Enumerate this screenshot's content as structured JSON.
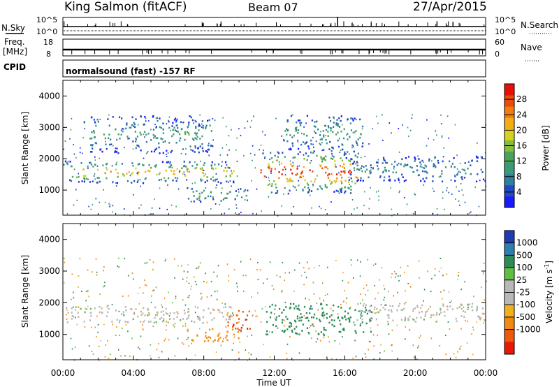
{
  "header": {
    "station": "King Salmon (fitACF)",
    "beam": "Beam 07",
    "date": "27/Apr/2015"
  },
  "param_panels": {
    "nsky_label": "N.Sky",
    "nsearch_label": "N.Search",
    "freq_label_1": "Freq.",
    "freq_label_2": "[MHz]",
    "nave_label": "Nave",
    "cpid_label": "CPID",
    "cpid_value": "normalsound (fast) -157 RF",
    "noise_ticks_left": [
      "10^5",
      "10^0"
    ],
    "noise_ticks_right": [
      "10^5",
      "10^0"
    ],
    "freq_ticks": [
      "18",
      "8"
    ],
    "nave_ticks": [
      "60",
      "0"
    ]
  },
  "chart_data": [
    {
      "type": "heatmap",
      "name": "power",
      "ylabel": "Slant Range [km]",
      "ylim": [
        200,
        4500
      ],
      "yticks": [
        "1000",
        "2000",
        "3000",
        "4000"
      ],
      "colorbar": {
        "label": "Power [dB]",
        "range": [
          0,
          32
        ],
        "ticks": [
          "4",
          "8",
          "12",
          "16",
          "20",
          "24",
          "28"
        ],
        "colors": [
          "#1a1aff",
          "#2447c4",
          "#2f7f9e",
          "#3a9a7a",
          "#4aa35a",
          "#86bd3c",
          "#d6d11e",
          "#f2ad12",
          "#f27d0c",
          "#ee4a09",
          "#e61006"
        ]
      },
      "bands": [
        {
          "t0": 0,
          "t1": 9.7,
          "r0": 1250,
          "r1": 1950,
          "peak_db": 22
        },
        {
          "t0": 1.5,
          "t1": 8.5,
          "r0": 2200,
          "r1": 3400,
          "peak_db": 10
        },
        {
          "t0": 7,
          "t1": 10.5,
          "r0": 650,
          "r1": 1100,
          "peak_db": 14
        },
        {
          "t0": 11.2,
          "t1": 16.8,
          "r0": 900,
          "r1": 2300,
          "peak_db": 29
        },
        {
          "t0": 12.5,
          "t1": 17,
          "r0": 2300,
          "r1": 3400,
          "peak_db": 10
        },
        {
          "t0": 16,
          "t1": 24,
          "r0": 1300,
          "r1": 2100,
          "peak_db": 8
        }
      ]
    },
    {
      "type": "heatmap",
      "name": "velocity",
      "xlabel": "Time UT",
      "xlim": [
        0,
        24
      ],
      "xticks": [
        "00:00",
        "04:00",
        "08:00",
        "12:00",
        "16:00",
        "20:00",
        "00:00"
      ],
      "ylabel": "Slant Range [km]",
      "ylim": [
        200,
        4500
      ],
      "yticks": [
        "1000",
        "2000",
        "3000",
        "4000"
      ],
      "colorbar": {
        "label": "Velocity [m s",
        "label_sup": "-1",
        "label_end": "]",
        "ticks": [
          "1000",
          "500",
          "100",
          "25",
          "-25",
          "-100",
          "-500",
          "-1000"
        ],
        "colors": [
          "#1f3cb0",
          "#2e7fae",
          "#2e8b57",
          "#5fbf3f",
          "#b8b8b8",
          "#b8b8b8",
          "#f2b01c",
          "#f08a12",
          "#ec5a0a",
          "#e81808"
        ]
      },
      "bands": [
        {
          "t0": 0,
          "t1": 9.5,
          "r0": 1400,
          "r1": 1900,
          "vel": 0
        },
        {
          "t0": 9.3,
          "t1": 10.6,
          "r0": 1100,
          "r1": 1800,
          "vel": -900
        },
        {
          "t0": 7,
          "t1": 10,
          "r0": 800,
          "r1": 1200,
          "vel": -300
        },
        {
          "t0": 11.5,
          "t1": 17.5,
          "r0": 1000,
          "r1": 2000,
          "vel": 150
        },
        {
          "t0": 16.5,
          "t1": 24,
          "r0": 1400,
          "r1": 2000,
          "vel": 0
        }
      ]
    }
  ]
}
